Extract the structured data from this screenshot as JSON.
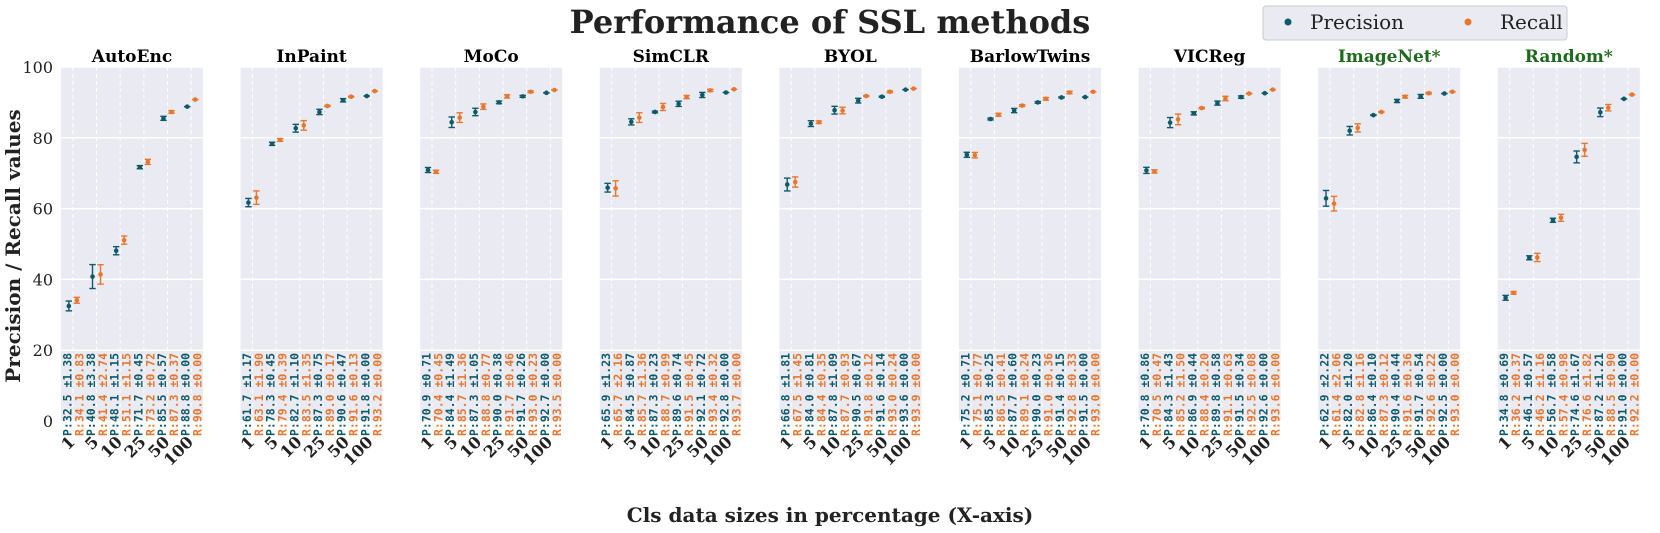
{
  "chart_data": {
    "type": "scatter",
    "title": "Performance of SSL methods",
    "xlabel": "Cls data sizes in percentage (X-axis)",
    "ylabel": "Precision / Recall values",
    "ylim": [
      0,
      100
    ],
    "yticks": [
      "0",
      "20",
      "40",
      "60",
      "80",
      "100"
    ],
    "categories": [
      "1",
      "5",
      "10",
      "25",
      "50",
      "100"
    ],
    "legend": {
      "position": "top-right",
      "entries": [
        {
          "name": "Precision",
          "color": "#0d5a6a"
        },
        {
          "name": "Recall",
          "color": "#e8772e"
        }
      ]
    },
    "colors": {
      "precision": "#0d5a6a",
      "recall": "#e8772e",
      "panel_bg": "#eaeaf2",
      "baseline_title": "#1e6b1e",
      "method_title": "#000000"
    },
    "panels": [
      {
        "name": "AutoEnc",
        "baseline": false,
        "precision": [
          32.5,
          40.8,
          48.1,
          71.7,
          85.5,
          88.8
        ],
        "precision_err": [
          1.38,
          3.38,
          1.15,
          0.45,
          0.57,
          0.0
        ],
        "recall": [
          34.1,
          41.4,
          51.1,
          73.2,
          87.3,
          90.8
        ],
        "recall_err": [
          0.83,
          2.74,
          1.15,
          0.72,
          0.37,
          0.0
        ],
        "p_labels": [
          "P:32.5 ±1.38",
          "P:40.8 ±3.38",
          "P:48.1 ±1.15",
          "P:71.7 ±0.45",
          "P:85.5 ±0.57",
          "P:88.8 ±0.00"
        ],
        "r_labels": [
          "R:34.1 ±0.83",
          "R:41.4 ±2.74",
          "R:51.1 ±1.15",
          "R:73.2 ±0.72",
          "R:87.3 ±0.37",
          "R:90.8 ±0.00"
        ]
      },
      {
        "name": "InPaint",
        "baseline": false,
        "precision": [
          61.7,
          78.3,
          82.7,
          87.3,
          90.6,
          91.8
        ],
        "precision_err": [
          1.17,
          0.45,
          1.1,
          0.75,
          0.47,
          0.0
        ],
        "recall": [
          63.1,
          79.4,
          83.5,
          89.0,
          91.6,
          93.2
        ],
        "recall_err": [
          1.9,
          0.39,
          1.35,
          0.17,
          0.13,
          0.0
        ],
        "p_labels": [
          "P:61.7 ±1.17",
          "P:78.3 ±0.45",
          "P:82.7 ±1.10",
          "P:87.3 ±0.75",
          "P:90.6 ±0.47",
          "P:91.8 ±0.00"
        ],
        "r_labels": [
          "R:63.1 ±1.90",
          "R:79.4 ±0.39",
          "R:83.5 ±1.35",
          "R:89.0 ±0.17",
          "R:91.6 ±0.13",
          "R:93.2 ±0.00"
        ]
      },
      {
        "name": "MoCo",
        "baseline": false,
        "precision": [
          70.9,
          84.4,
          87.3,
          90.0,
          91.7,
          92.7
        ],
        "precision_err": [
          0.71,
          1.49,
          1.05,
          0.38,
          0.26,
          0.0
        ],
        "recall": [
          70.4,
          85.7,
          88.8,
          91.7,
          93.0,
          93.5
        ],
        "recall_err": [
          0.45,
          1.36,
          0.77,
          0.46,
          0.23,
          0.0
        ],
        "p_labels": [
          "P:70.9 ±0.71",
          "P:84.4 ±1.49",
          "P:87.3 ±1.05",
          "P:90.0 ±0.38",
          "P:91.7 ±0.26",
          "P:92.7 ±0.00"
        ],
        "r_labels": [
          "R:70.4 ±0.45",
          "R:85.7 ±1.36",
          "R:88.8 ±0.77",
          "R:91.7 ±0.46",
          "R:93.0 ±0.23",
          "R:93.5 ±0.00"
        ]
      },
      {
        "name": "SimCLR",
        "baseline": false,
        "precision": [
          65.9,
          84.5,
          87.3,
          89.6,
          92.1,
          92.8
        ],
        "precision_err": [
          1.23,
          0.87,
          0.23,
          0.74,
          0.72,
          0.0
        ],
        "recall": [
          65.7,
          85.7,
          88.7,
          91.5,
          93.4,
          93.7
        ],
        "recall_err": [
          2.16,
          1.36,
          0.99,
          0.45,
          0.32,
          0.0
        ],
        "p_labels": [
          "P:65.9 ±1.23",
          "P:84.5 ±0.87",
          "P:87.3 ±0.23",
          "P:89.6 ±0.74",
          "P:92.1 ±0.72",
          "P:92.8 ±0.00"
        ],
        "r_labels": [
          "R:65.7 ±2.16",
          "R:85.7 ±1.36",
          "R:88.7 ±0.99",
          "R:91.5 ±0.45",
          "R:93.4 ±0.32",
          "R:93.7 ±0.00"
        ]
      },
      {
        "name": "BYOL",
        "baseline": false,
        "precision": [
          66.8,
          84.0,
          87.8,
          90.5,
          91.6,
          93.6
        ],
        "precision_err": [
          1.81,
          0.81,
          1.09,
          0.67,
          0.14,
          0.0
        ],
        "recall": [
          67.5,
          84.4,
          87.7,
          91.8,
          93.0,
          93.9
        ],
        "recall_err": [
          1.45,
          0.35,
          0.93,
          0.12,
          0.24,
          0.0
        ],
        "p_labels": [
          "P:66.8 ±1.81",
          "P:84.0 ±0.81",
          "P:87.8 ±1.09",
          "P:90.5 ±0.67",
          "P:91.6 ±0.14",
          "P:93.6 ±0.00"
        ],
        "r_labels": [
          "R:67.5 ±1.45",
          "R:84.4 ±0.35",
          "R:87.7 ±0.93",
          "R:91.8 ±0.12",
          "R:93.0 ±0.24",
          "R:93.9 ±0.00"
        ]
      },
      {
        "name": "BarlowTwins",
        "baseline": false,
        "precision": [
          75.2,
          85.3,
          87.7,
          90.0,
          91.4,
          91.5
        ],
        "precision_err": [
          0.71,
          0.25,
          0.6,
          0.23,
          0.15,
          0.0
        ],
        "recall": [
          75.1,
          86.5,
          89.1,
          91.0,
          92.8,
          93.0
        ],
        "recall_err": [
          0.77,
          0.41,
          0.24,
          0.36,
          0.33,
          0.0
        ],
        "p_labels": [
          "P:75.2 ±0.71",
          "P:85.3 ±0.25",
          "P:87.7 ±0.60",
          "P:90.0 ±0.23",
          "P:91.4 ±0.15",
          "P:91.5 ±0.00"
        ],
        "r_labels": [
          "R:75.1 ±0.77",
          "R:86.5 ±0.41",
          "R:89.1 ±0.24",
          "R:91.0 ±0.36",
          "R:92.8 ±0.33",
          "R:93.0 ±0.00"
        ]
      },
      {
        "name": "VICReg",
        "baseline": false,
        "precision": [
          70.8,
          84.3,
          86.9,
          89.8,
          91.5,
          92.6
        ],
        "precision_err": [
          0.86,
          1.43,
          0.44,
          0.58,
          0.34,
          0.0
        ],
        "recall": [
          70.5,
          85.2,
          88.4,
          91.1,
          92.5,
          93.6
        ],
        "recall_err": [
          0.47,
          1.5,
          0.2,
          0.63,
          0.08,
          0.0
        ],
        "p_labels": [
          "P:70.8 ±0.86",
          "P:84.3 ±1.43",
          "P:86.9 ±0.44",
          "P:89.8 ±0.58",
          "P:91.5 ±0.34",
          "P:92.6 ±0.00"
        ],
        "r_labels": [
          "R:70.5 ±0.47",
          "R:85.2 ±1.50",
          "R:88.4 ±0.20",
          "R:91.1 ±0.63",
          "R:92.5 ±0.08",
          "R:93.6 ±0.00"
        ]
      },
      {
        "name": "ImageNet*",
        "baseline": true,
        "precision": [
          62.9,
          82.0,
          86.4,
          90.4,
          91.7,
          92.5
        ],
        "precision_err": [
          2.22,
          1.2,
          0.1,
          0.44,
          0.54,
          0.0
        ],
        "recall": [
          61.4,
          82.8,
          87.3,
          91.6,
          92.6,
          93.0
        ],
        "recall_err": [
          2.06,
          1.16,
          0.12,
          0.36,
          0.22,
          0.0
        ],
        "p_labels": [
          "P:62.9 ±2.22",
          "P:82.0 ±1.20",
          "P:86.4 ±0.10",
          "P:90.4 ±0.44",
          "P:91.7 ±0.54",
          "P:92.5 ±0.00"
        ],
        "r_labels": [
          "R:61.4 ±2.06",
          "R:82.8 ±1.16",
          "R:87.3 ±0.12",
          "R:91.6 ±0.36",
          "R:92.6 ±0.22",
          "R:93.0 ±0.00"
        ]
      },
      {
        "name": "Random*",
        "baseline": true,
        "precision": [
          34.8,
          46.1,
          56.7,
          74.6,
          87.2,
          91.0
        ],
        "precision_err": [
          0.69,
          0.57,
          0.58,
          1.67,
          1.21,
          0.0
        ],
        "recall": [
          36.2,
          46.2,
          57.4,
          76.6,
          88.5,
          92.2
        ],
        "recall_err": [
          0.37,
          1.16,
          0.98,
          1.82,
          0.9,
          0.0
        ],
        "p_labels": [
          "P:34.8 ±0.69",
          "P:46.1 ±0.57",
          "P:56.7 ±0.58",
          "P:74.6 ±1.67",
          "P:87.2 ±1.21",
          "P:91.0 ±0.00"
        ],
        "r_labels": [
          "R:36.2 ±0.37",
          "R:46.2 ±1.16",
          "R:57.4 ±0.98",
          "R:76.6 ±1.82",
          "R:88.5 ±0.90",
          "R:92.2 ±0.00"
        ]
      }
    ]
  }
}
